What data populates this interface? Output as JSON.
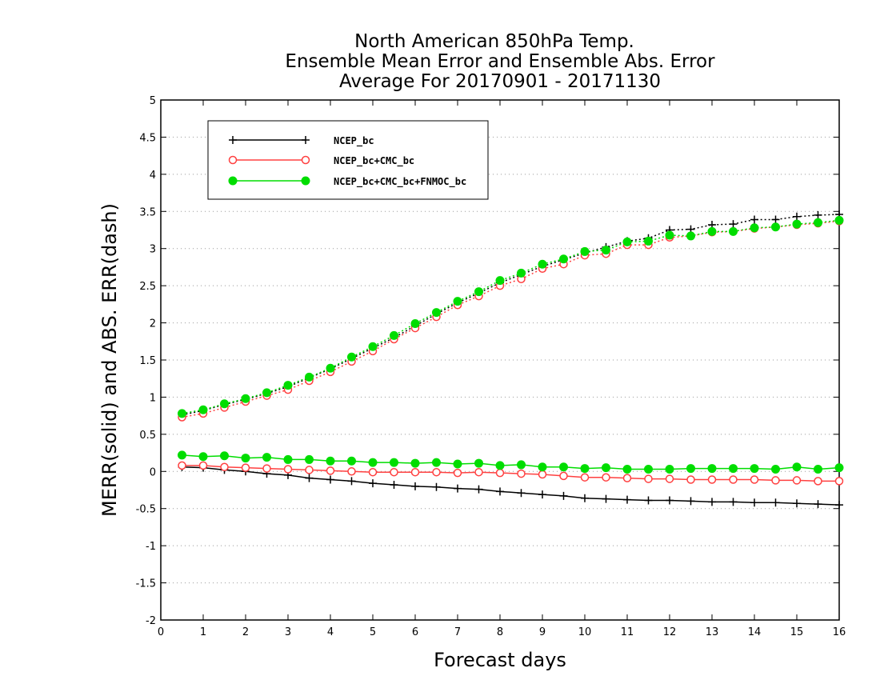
{
  "chart_data": {
    "type": "line",
    "title_lines": [
      "North American 850hPa Temp.",
      "Ensemble Mean Error and Ensemble Abs. Error",
      "Average For 20170901 - 20171130"
    ],
    "xlabel": "Forecast days",
    "ylabel": "MERR(solid) and ABS. ERR(dash)",
    "xlim": [
      0,
      16
    ],
    "ylim": [
      -2,
      5
    ],
    "xticks": [
      0,
      1,
      2,
      3,
      4,
      5,
      6,
      7,
      8,
      9,
      10,
      11,
      12,
      13,
      14,
      15,
      16
    ],
    "xtick_labels": [
      "0",
      "1",
      "2",
      "3",
      "4",
      "5",
      "6",
      "7",
      "8",
      "9",
      "10",
      "11",
      "12",
      "13",
      "14",
      "15",
      "16"
    ],
    "yticks": [
      -2,
      -1.5,
      -1,
      -0.5,
      0,
      0.5,
      1,
      1.5,
      2,
      2.5,
      3,
      3.5,
      4,
      4.5,
      5
    ],
    "ytick_labels": [
      "-2",
      "-1.5",
      "-1",
      "-0.5",
      "0",
      "0.5",
      "1",
      "1.5",
      "2",
      "2.5",
      "3",
      "3.5",
      "4",
      "4.5",
      "5"
    ],
    "grid": "horizontal dotted",
    "legend_position": "top-left",
    "x": [
      0.5,
      1.0,
      1.5,
      2.0,
      2.5,
      3.0,
      3.5,
      4.0,
      4.5,
      5.0,
      5.5,
      6.0,
      6.5,
      7.0,
      7.5,
      8.0,
      8.5,
      9.0,
      9.5,
      10.0,
      10.5,
      11.0,
      11.5,
      12.0,
      12.5,
      13.0,
      13.5,
      14.0,
      14.5,
      15.0,
      15.5,
      16.0
    ],
    "series": [
      {
        "name": "NCEP_bc",
        "color": "#000000",
        "marker": "plus",
        "merr": [
          0.06,
          0.05,
          0.02,
          0.0,
          -0.03,
          -0.05,
          -0.09,
          -0.11,
          -0.13,
          -0.16,
          -0.18,
          -0.2,
          -0.21,
          -0.23,
          -0.24,
          -0.27,
          -0.29,
          -0.31,
          -0.33,
          -0.36,
          -0.37,
          -0.38,
          -0.39,
          -0.39,
          -0.4,
          -0.41,
          -0.41,
          -0.42,
          -0.42,
          -0.43,
          -0.44,
          -0.45
        ],
        "abs_err": [
          0.76,
          0.82,
          0.9,
          0.97,
          1.05,
          1.14,
          1.26,
          1.38,
          1.52,
          1.66,
          1.8,
          1.96,
          2.12,
          2.27,
          2.4,
          2.54,
          2.65,
          2.76,
          2.85,
          2.94,
          3.02,
          3.1,
          3.14,
          3.25,
          3.26,
          3.32,
          3.33,
          3.39,
          3.39,
          3.43,
          3.45,
          3.46
        ]
      },
      {
        "name": "NCEP_bc+CMC_bc",
        "color": "#ff4040",
        "marker": "open-circle",
        "merr": [
          0.08,
          0.08,
          0.06,
          0.05,
          0.04,
          0.03,
          0.02,
          0.01,
          0.0,
          -0.01,
          -0.01,
          -0.01,
          -0.01,
          -0.02,
          -0.01,
          -0.02,
          -0.03,
          -0.04,
          -0.06,
          -0.08,
          -0.08,
          -0.09,
          -0.1,
          -0.1,
          -0.11,
          -0.11,
          -0.11,
          -0.11,
          -0.12,
          -0.12,
          -0.13,
          -0.13
        ],
        "abs_err": [
          0.73,
          0.78,
          0.86,
          0.94,
          1.02,
          1.1,
          1.22,
          1.34,
          1.48,
          1.62,
          1.78,
          1.93,
          2.08,
          2.24,
          2.36,
          2.5,
          2.59,
          2.73,
          2.79,
          2.91,
          2.93,
          3.05,
          3.05,
          3.15,
          3.17,
          3.22,
          3.23,
          3.27,
          3.29,
          3.32,
          3.34,
          3.37
        ]
      },
      {
        "name": "NCEP_bc+CMC_bc+FNMOC_bc",
        "color": "#00dd00",
        "marker": "filled-circle",
        "merr": [
          0.22,
          0.2,
          0.21,
          0.18,
          0.19,
          0.16,
          0.16,
          0.14,
          0.14,
          0.12,
          0.12,
          0.11,
          0.12,
          0.1,
          0.11,
          0.08,
          0.09,
          0.06,
          0.06,
          0.04,
          0.05,
          0.03,
          0.03,
          0.03,
          0.04,
          0.04,
          0.04,
          0.04,
          0.03,
          0.06,
          0.03,
          0.05
        ],
        "abs_err": [
          0.78,
          0.83,
          0.91,
          0.98,
          1.06,
          1.16,
          1.27,
          1.39,
          1.54,
          1.68,
          1.83,
          1.99,
          2.14,
          2.29,
          2.42,
          2.57,
          2.67,
          2.79,
          2.86,
          2.96,
          2.98,
          3.09,
          3.1,
          3.18,
          3.17,
          3.23,
          3.23,
          3.28,
          3.29,
          3.33,
          3.35,
          3.38
        ]
      }
    ]
  }
}
